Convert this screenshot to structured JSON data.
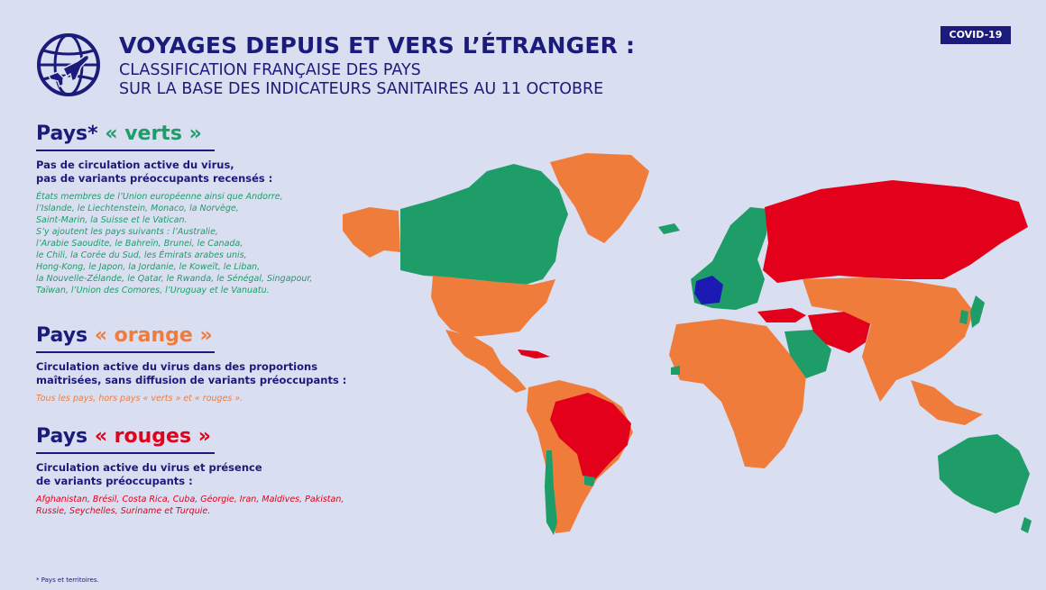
{
  "header": {
    "title": "VOYAGES DEPUIS ET VERS L’ÉTRANGER :",
    "subtitle_line1": "CLASSIFICATION FRANÇAISE DES PAYS",
    "subtitle_line2": "SUR LA BASE DES INDICATEURS SANITAIRES AU 11 OCTOBRE",
    "badge": "COVID-19"
  },
  "colors": {
    "navy": "#1a1b7a",
    "green": "#1e9d68",
    "orange": "#f07c3c",
    "red": "#e2001a",
    "france": "#1b1bb3",
    "background": "#d9def0"
  },
  "green_section": {
    "title_prefix": "Pays*",
    "title_label": "« verts »",
    "desc_line1": "Pas de circulation active du virus,",
    "desc_line2": "pas de variants préoccupants recensés :",
    "detail_lines": [
      "États membres de l’Union européenne ainsi que Andorre,",
      "l’Islande, le Liechtenstein, Monaco, la Norvège,",
      "Saint-Marin, la Suisse et le Vatican.",
      "S’y ajoutent les pays suivants : l’Australie,",
      "l’Arabie Saoudite, le Bahreïn, Brunei, le Canada,",
      "le Chili, la Corée du Sud, les Émirats arabes unis,",
      "Hong-Kong, le Japon, la Jordanie, le Koweït, le Liban,",
      "la Nouvelle-Zélande, le Qatar, le Rwanda, le Sénégal, Singapour,",
      "Taïwan, l’Union des Comores, l’Uruguay et le Vanuatu."
    ]
  },
  "orange_section": {
    "title_prefix": "Pays",
    "title_label": "« orange »",
    "desc_line1": "Circulation active du virus dans des proportions",
    "desc_line2": "maîtrisées, sans diffusion de variants préoccupants :",
    "detail_lines": [
      "Tous les pays, hors pays « verts » et « rouges »."
    ]
  },
  "red_section": {
    "title_prefix": "Pays",
    "title_label": "« rouges »",
    "desc_line1": "Circulation active du virus et présence",
    "desc_line2": "de variants préoccupants :",
    "detail_lines": [
      "Afghanistan, Brésil, Costa Rica, Cuba, Géorgie, Iran, Maldives, Pakistan,",
      "Russie, Seychelles, Suriname et Turquie."
    ]
  },
  "footnote": "* Pays et territoires."
}
